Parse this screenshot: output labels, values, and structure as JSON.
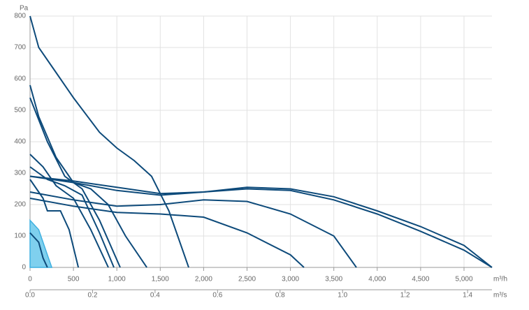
{
  "chart_data": {
    "type": "line",
    "y_label": "Pa",
    "x_label": "m³/h",
    "x2_label": "m³/s",
    "xlim": [
      0,
      5322
    ],
    "ylim": [
      0,
      800
    ],
    "x2lim": [
      0,
      1.478
    ],
    "xticks": [
      0,
      500,
      {
        "value": 1000,
        "label": "1,000"
      },
      {
        "value": 1500,
        "label": "1,500"
      },
      {
        "value": 2000,
        "label": "2,000"
      },
      {
        "value": 2500,
        "label": "2,500"
      },
      {
        "value": 3000,
        "label": "3,000"
      },
      {
        "value": 3500,
        "label": "3,500"
      },
      {
        "value": 4000,
        "label": "4,000"
      },
      {
        "value": 4500,
        "label": "4,500"
      },
      {
        "value": 5000,
        "label": "5,000"
      }
    ],
    "x2ticks": [
      {
        "value": 0,
        "label": "0.0"
      },
      0.2,
      0.4,
      0.6,
      0.8,
      {
        "value": 1,
        "label": "1.0"
      },
      1.2,
      1.4
    ],
    "yticks": [
      0,
      100,
      200,
      300,
      400,
      500,
      600,
      700,
      800
    ],
    "grid": true,
    "series": [
      {
        "color": "#7fd0ee",
        "area": true,
        "x": [
          0,
          100,
          150,
          200,
          250
        ],
        "values": [
          150,
          120,
          80,
          40,
          0
        ]
      },
      {
        "color": "#0d4a7a",
        "x": [
          0,
          100,
          150,
          200
        ],
        "values": [
          110,
          80,
          30,
          0
        ]
      },
      {
        "color": "#0d4a7a",
        "x": [
          0,
          100,
          300,
          500,
          800,
          1000,
          1200,
          1400,
          1600,
          1828
        ],
        "values": [
          800,
          700,
          620,
          540,
          430,
          380,
          340,
          290,
          180,
          0
        ]
      },
      {
        "color": "#0d4a7a",
        "x": [
          0,
          100,
          300,
          500,
          700,
          900,
          1100,
          1345
        ],
        "values": [
          580,
          480,
          350,
          270,
          250,
          200,
          100,
          0
        ]
      },
      {
        "color": "#0d4a7a",
        "x": [
          0,
          200,
          400,
          600,
          800,
          1039
        ],
        "values": [
          540,
          400,
          290,
          250,
          150,
          0
        ]
      },
      {
        "color": "#0d4a7a",
        "x": [
          0,
          150,
          300,
          500,
          700,
          902
        ],
        "values": [
          360,
          320,
          260,
          220,
          120,
          0
        ]
      },
      {
        "color": "#0d4a7a",
        "x": [
          0,
          200,
          400,
          600,
          800,
          966
        ],
        "values": [
          320,
          280,
          260,
          230,
          110,
          0
        ]
      },
      {
        "color": "#0d4a7a",
        "x": [
          0,
          150,
          200,
          350,
          450,
          556
        ],
        "values": [
          280,
          220,
          180,
          180,
          120,
          0
        ]
      },
      {
        "color": "#0d4a7a",
        "x": [
          0,
          500,
          1000,
          1500,
          2000,
          2500,
          3000,
          3500,
          4000,
          4500,
          5000,
          5322
        ],
        "values": [
          290,
          270,
          245,
          230,
          240,
          255,
          250,
          225,
          180,
          130,
          70,
          0
        ]
      },
      {
        "color": "#0d4a7a",
        "x": [
          0,
          500,
          1000,
          1500,
          2000,
          2500,
          3000,
          3500,
          4000,
          4500,
          5000,
          5322
        ],
        "values": [
          290,
          275,
          255,
          235,
          240,
          250,
          245,
          215,
          170,
          115,
          55,
          0
        ]
      },
      {
        "color": "#0d4a7a",
        "x": [
          0,
          500,
          1000,
          1500,
          2000,
          2500,
          3000,
          3500,
          3760
        ],
        "values": [
          240,
          215,
          195,
          200,
          215,
          210,
          170,
          100,
          0
        ]
      },
      {
        "color": "#0d4a7a",
        "x": [
          0,
          500,
          1000,
          1500,
          2000,
          2500,
          3000,
          3156
        ],
        "values": [
          220,
          195,
          175,
          170,
          160,
          110,
          40,
          0
        ]
      }
    ]
  }
}
